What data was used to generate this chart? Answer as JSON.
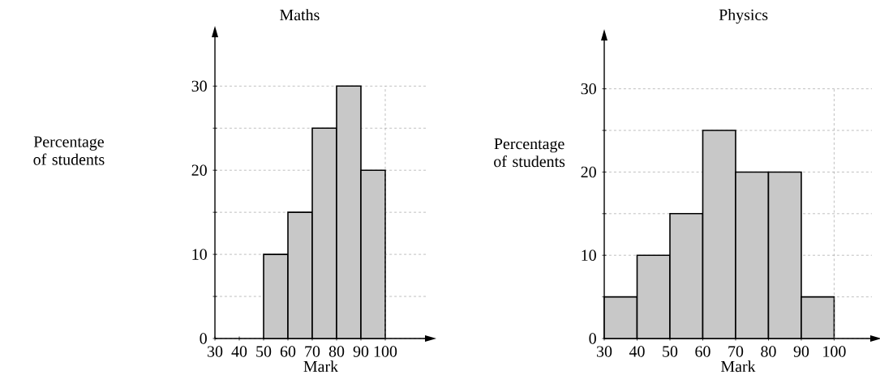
{
  "chart_data": [
    {
      "type": "histogram",
      "title": "Maths",
      "xlabel": "Mark",
      "ylabel": "Percentage of students",
      "bins": [
        50,
        60,
        70,
        80,
        90,
        100
      ],
      "values": [
        10,
        15,
        25,
        30,
        20
      ],
      "color": "#c8c8c8",
      "xlim": [
        30,
        117
      ],
      "ylim": [
        0,
        36
      ],
      "xticks": [
        30,
        40,
        50,
        60,
        70,
        80,
        90,
        100
      ],
      "yticks": [
        0,
        {
          "value": 5,
          "label": null
        },
        10,
        {
          "value": 15,
          "label": null
        },
        20,
        {
          "value": 25,
          "label": null
        },
        30
      ],
      "grid": "y",
      "ref_lines": [
        {
          "axis": "x",
          "value": 100,
          "line_style": "dashed"
        }
      ]
    },
    {
      "type": "histogram",
      "title": "Physics",
      "xlabel": "Mark",
      "ylabel": "Percentage of students",
      "bins": [
        30,
        40,
        50,
        60,
        70,
        80,
        90,
        100
      ],
      "values": [
        5,
        10,
        15,
        25,
        20,
        20,
        5
      ],
      "color": "#c8c8c8",
      "xlim": [
        30,
        111.5
      ],
      "ylim": [
        0,
        36
      ],
      "xticks": [
        30,
        40,
        50,
        60,
        70,
        80,
        90,
        100
      ],
      "yticks": [
        0,
        {
          "value": 5,
          "label": null
        },
        10,
        {
          "value": 15,
          "label": null
        },
        20,
        {
          "value": 25,
          "label": null
        },
        30
      ],
      "grid": "y",
      "ref_lines": [
        {
          "axis": "x",
          "value": 100,
          "line_style": "dashed"
        }
      ]
    }
  ]
}
